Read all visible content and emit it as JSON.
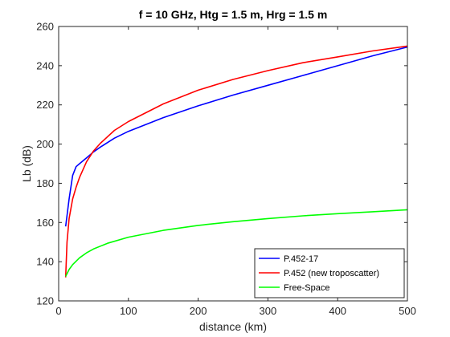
{
  "chart_data": {
    "type": "line",
    "title": "f = 10 GHz, Htg = 1.5 m, Hrg = 1.5 m",
    "xlabel": "distance (km)",
    "ylabel": "Lb (dB)",
    "xlim": [
      0,
      500
    ],
    "ylim": [
      120,
      260
    ],
    "xticks": [
      0,
      100,
      200,
      300,
      400,
      500
    ],
    "yticks": [
      120,
      140,
      160,
      180,
      200,
      220,
      240,
      260
    ],
    "xtick_labels": [
      "0",
      "100",
      "200",
      "300",
      "400",
      "500"
    ],
    "ytick_labels": [
      "120",
      "140",
      "160",
      "180",
      "200",
      "220",
      "240",
      "260"
    ],
    "grid": false,
    "legend_position": "bottom-right",
    "series": [
      {
        "name": "P.452-17",
        "color": "#0000ff",
        "x": [
          10,
          15,
          20,
          25,
          30,
          40,
          50,
          60,
          80,
          100,
          150,
          200,
          250,
          300,
          350,
          400,
          450,
          500
        ],
        "y": [
          158,
          172,
          184,
          188.5,
          190,
          193,
          196,
          198.5,
          203,
          206.5,
          213.5,
          219.5,
          225,
          230,
          235,
          240,
          245,
          249.5
        ]
      },
      {
        "name": "P.452 (new troposcatter)",
        "color": "#ff0000",
        "x": [
          10,
          12,
          15,
          20,
          25,
          30,
          40,
          50,
          60,
          80,
          100,
          150,
          200,
          250,
          300,
          350,
          400,
          450,
          500
        ],
        "y": [
          132,
          150,
          162,
          172,
          178,
          183,
          191,
          196.5,
          200.5,
          207,
          211.5,
          220.5,
          227.5,
          233,
          237.5,
          241.5,
          244.5,
          247.5,
          250
        ]
      },
      {
        "name": "Free-Space",
        "color": "#00ff00",
        "x": [
          10,
          15,
          20,
          30,
          40,
          50,
          70,
          100,
          150,
          200,
          250,
          300,
          350,
          400,
          450,
          500
        ],
        "y": [
          132.5,
          136,
          138.5,
          142,
          144.5,
          146.5,
          149.4,
          152.5,
          156,
          158.5,
          160.4,
          162,
          163.4,
          164.5,
          165.5,
          166.5
        ]
      }
    ]
  }
}
